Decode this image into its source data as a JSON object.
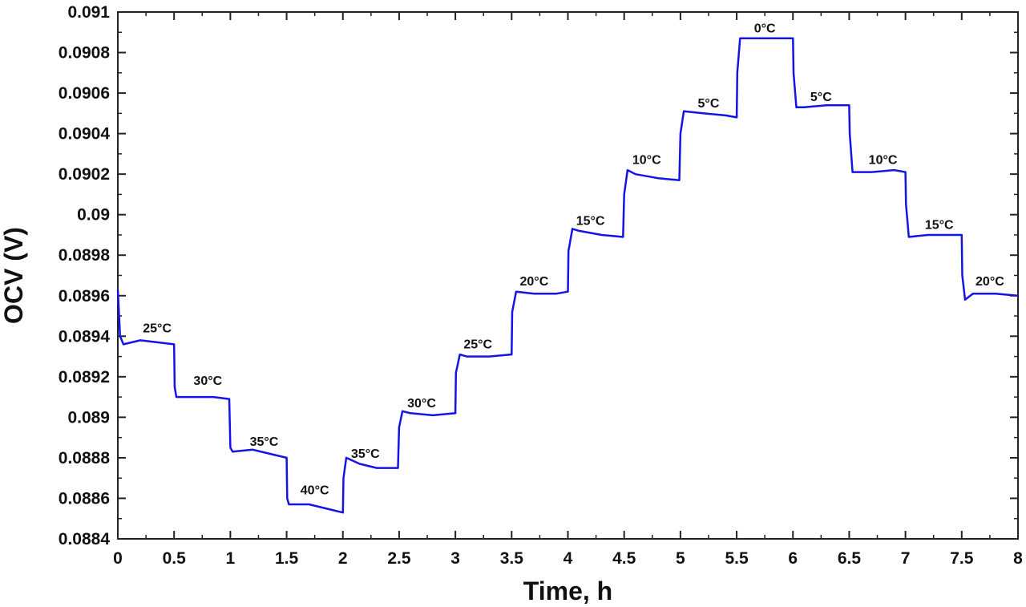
{
  "chart_data": {
    "type": "line",
    "title": "",
    "xlabel": "Time,  h",
    "ylabel": "OCV (V)",
    "xlim": [
      0,
      8
    ],
    "ylim": [
      0.0884,
      0.091
    ],
    "x_ticks": [
      0,
      0.5,
      1,
      1.5,
      2,
      2.5,
      3,
      3.5,
      4,
      4.5,
      5,
      5.5,
      6,
      6.5,
      7,
      7.5,
      8
    ],
    "x_tick_labels": [
      "0",
      "0.5",
      "1",
      "1.5",
      "2",
      "2.5",
      "3",
      "3.5",
      "4",
      "4.5",
      "5",
      "5.5",
      "6",
      "6.5",
      "7",
      "7.5",
      "8"
    ],
    "y_ticks": [
      0.0884,
      0.0886,
      0.0888,
      0.089,
      0.0892,
      0.0894,
      0.0896,
      0.0898,
      0.09,
      0.0902,
      0.0904,
      0.0906,
      0.0908,
      0.091
    ],
    "y_tick_labels": [
      "0.0884",
      "0.0886",
      "0.0888",
      "0.089",
      "0.0892",
      "0.0894",
      "0.0896",
      "0.0898",
      "0.09",
      "0.0902",
      "0.0904",
      "0.0906",
      "0.0908",
      "0.091"
    ],
    "grid": false,
    "legend": "none",
    "series": [
      {
        "color": "#1414e6",
        "points": [
          [
            0,
            0.08963
          ],
          [
            0.02,
            0.0894
          ],
          [
            0.05,
            0.08936
          ],
          [
            0.2,
            0.08938
          ],
          [
            0.35,
            0.08937
          ],
          [
            0.5,
            0.08936
          ],
          [
            0.505,
            0.08915
          ],
          [
            0.52,
            0.0891
          ],
          [
            0.7,
            0.0891
          ],
          [
            0.85,
            0.0891
          ],
          [
            0.99,
            0.08909
          ],
          [
            1.0,
            0.08885
          ],
          [
            1.02,
            0.08883
          ],
          [
            1.2,
            0.08884
          ],
          [
            1.35,
            0.08882
          ],
          [
            1.5,
            0.0888
          ],
          [
            1.505,
            0.0886
          ],
          [
            1.52,
            0.08857
          ],
          [
            1.7,
            0.08857
          ],
          [
            1.85,
            0.08855
          ],
          [
            2.0,
            0.08853
          ],
          [
            2.005,
            0.0887
          ],
          [
            2.03,
            0.0888
          ],
          [
            2.15,
            0.08877
          ],
          [
            2.3,
            0.08875
          ],
          [
            2.49,
            0.08875
          ],
          [
            2.5,
            0.08895
          ],
          [
            2.53,
            0.08903
          ],
          [
            2.6,
            0.08902
          ],
          [
            2.8,
            0.08901
          ],
          [
            3.0,
            0.08902
          ],
          [
            3.005,
            0.08922
          ],
          [
            3.04,
            0.08931
          ],
          [
            3.1,
            0.0893
          ],
          [
            3.3,
            0.0893
          ],
          [
            3.5,
            0.08931
          ],
          [
            3.505,
            0.08952
          ],
          [
            3.54,
            0.08962
          ],
          [
            3.7,
            0.08961
          ],
          [
            3.9,
            0.08961
          ],
          [
            4.0,
            0.08962
          ],
          [
            4.005,
            0.08982
          ],
          [
            4.04,
            0.08993
          ],
          [
            4.1,
            0.08992
          ],
          [
            4.3,
            0.0899
          ],
          [
            4.49,
            0.08989
          ],
          [
            4.5,
            0.0901
          ],
          [
            4.53,
            0.09022
          ],
          [
            4.6,
            0.0902
          ],
          [
            4.8,
            0.09018
          ],
          [
            4.99,
            0.09017
          ],
          [
            5.0,
            0.0904
          ],
          [
            5.03,
            0.09051
          ],
          [
            5.2,
            0.0905
          ],
          [
            5.4,
            0.09049
          ],
          [
            5.5,
            0.09048
          ],
          [
            5.505,
            0.0907
          ],
          [
            5.53,
            0.09087
          ],
          [
            5.7,
            0.09087
          ],
          [
            5.9,
            0.09087
          ],
          [
            6.0,
            0.09087
          ],
          [
            6.005,
            0.0907
          ],
          [
            6.03,
            0.09053
          ],
          [
            6.1,
            0.09053
          ],
          [
            6.3,
            0.09054
          ],
          [
            6.5,
            0.09054
          ],
          [
            6.505,
            0.0904
          ],
          [
            6.53,
            0.09021
          ],
          [
            6.7,
            0.09021
          ],
          [
            6.9,
            0.09022
          ],
          [
            7.0,
            0.09021
          ],
          [
            7.005,
            0.09005
          ],
          [
            7.03,
            0.08989
          ],
          [
            7.2,
            0.0899
          ],
          [
            7.4,
            0.0899
          ],
          [
            7.5,
            0.0899
          ],
          [
            7.505,
            0.0897
          ],
          [
            7.53,
            0.08958
          ],
          [
            7.6,
            0.08961
          ],
          [
            7.8,
            0.08961
          ],
          [
            8.0,
            0.0896
          ]
        ]
      }
    ],
    "annotations": [
      {
        "text": "25°C",
        "x": 0.35,
        "y": 0.08942
      },
      {
        "text": "30°C",
        "x": 0.8,
        "y": 0.08916
      },
      {
        "text": "35°C",
        "x": 1.3,
        "y": 0.08886
      },
      {
        "text": "40°C",
        "x": 1.75,
        "y": 0.08862
      },
      {
        "text": "35°C",
        "x": 2.2,
        "y": 0.0888
      },
      {
        "text": "30°C",
        "x": 2.7,
        "y": 0.08905
      },
      {
        "text": "25°C",
        "x": 3.2,
        "y": 0.08934
      },
      {
        "text": "20°C",
        "x": 3.7,
        "y": 0.08965
      },
      {
        "text": "15°C",
        "x": 4.2,
        "y": 0.08995
      },
      {
        "text": "10°C",
        "x": 4.7,
        "y": 0.09025
      },
      {
        "text": "5°C",
        "x": 5.25,
        "y": 0.09053
      },
      {
        "text": "0°C",
        "x": 5.75,
        "y": 0.0909
      },
      {
        "text": "5°C",
        "x": 6.25,
        "y": 0.09056
      },
      {
        "text": "10°C",
        "x": 6.8,
        "y": 0.09025
      },
      {
        "text": "15°C",
        "x": 7.3,
        "y": 0.08993
      },
      {
        "text": "20°C",
        "x": 7.75,
        "y": 0.08965
      }
    ]
  }
}
